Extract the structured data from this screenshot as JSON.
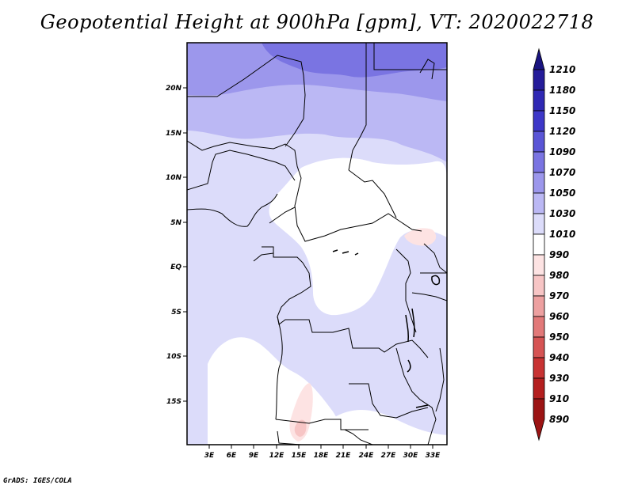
{
  "title": "Geopotential Height at 900hPa [gpm], VT: 2020022718",
  "credit": "GrADS: IGES/COLA",
  "map": {
    "lat_ticks": [
      "20N",
      "15N",
      "10N",
      "5N",
      "EQ",
      "5S",
      "10S",
      "15S"
    ],
    "lon_ticks": [
      "3E",
      "6E",
      "9E",
      "12E",
      "15E",
      "18E",
      "21E",
      "24E",
      "27E",
      "30E",
      "33E"
    ]
  },
  "colorbar": {
    "labels": [
      "1210",
      "1180",
      "1150",
      "1120",
      "1090",
      "1070",
      "1050",
      "1030",
      "1010",
      "990",
      "980",
      "970",
      "960",
      "950",
      "940",
      "930",
      "910",
      "890"
    ],
    "colors": [
      "#1a1480",
      "#251c9a",
      "#2f28b4",
      "#3d37c8",
      "#5a55d6",
      "#7a74e2",
      "#9c97ec",
      "#bbb8f4",
      "#dcdcfa",
      "#ffffff",
      "#fde3e3",
      "#f7c5c5",
      "#eda0a0",
      "#e27979",
      "#d65454",
      "#c83333",
      "#b41f1f",
      "#9c1414"
    ]
  }
}
